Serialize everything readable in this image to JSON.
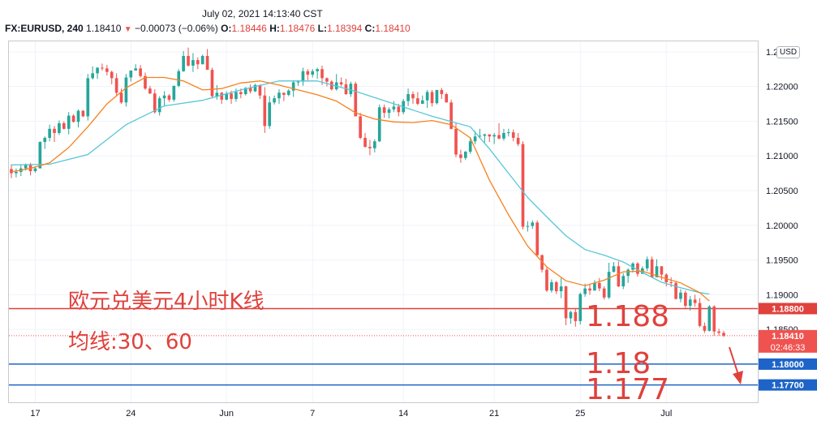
{
  "header": {
    "datetime": "July 02, 2021 14:13:40 CST",
    "symbol": "FX:EURUSD, 240",
    "last": "1.18410",
    "change": "−0.00073 (−0.06%)",
    "o_label": "O:",
    "o_value": "1.18446",
    "h_label": "H:",
    "h_value": "1.18476",
    "l_label": "L:",
    "l_value": "1.18394",
    "c_label": "C:",
    "c_value": "1.18410"
  },
  "currency_badge": "USD",
  "annotations": {
    "title_line1": "欧元兑美元4小时K线",
    "title_line2": "均线:30、60",
    "level1": "1.188",
    "level2": "1.18",
    "level3": "1.177"
  },
  "colors": {
    "up": "#26a69a",
    "down": "#ef5350",
    "ma30": "#f7811e",
    "ma60": "#57c7d6",
    "hline_red": "#e0413c",
    "hline_blue": "#1e64c8",
    "price_tag": "#ef5350",
    "annotation_text": "#e0413c"
  },
  "chart_data": {
    "type": "candlestick",
    "symbol": "FX:EURUSD",
    "interval": "240",
    "x_ticks": [
      "17",
      "24",
      "Jun",
      "7",
      "14",
      "21",
      "25",
      "Jul"
    ],
    "y_ticks": [
      "1.22500",
      "1.22000",
      "1.21500",
      "1.21000",
      "1.20500",
      "1.20000",
      "1.19500",
      "1.19000",
      "1.18500"
    ],
    "ylim": [
      1.1745,
      1.2265
    ],
    "horizontal_lines": [
      {
        "value": 1.188,
        "label": "1.18800",
        "color": "red"
      },
      {
        "value": 1.18,
        "label": "1.18000",
        "color": "blue"
      },
      {
        "value": 1.177,
        "label": "1.17700",
        "color": "blue"
      }
    ],
    "last_price": {
      "value": 1.1841,
      "label": "1.18410",
      "countdown": "02:46:33"
    },
    "ma30_anchors": [
      [
        0,
        1.2077
      ],
      [
        4,
        1.2082
      ],
      [
        8,
        1.209
      ],
      [
        12,
        1.2112
      ],
      [
        16,
        1.2142
      ],
      [
        20,
        1.2175
      ],
      [
        24,
        1.2198
      ],
      [
        28,
        1.2213
      ],
      [
        32,
        1.2213
      ],
      [
        36,
        1.2208
      ],
      [
        40,
        1.2195
      ],
      [
        44,
        1.2197
      ],
      [
        48,
        1.2205
      ],
      [
        52,
        1.2208
      ],
      [
        56,
        1.2202
      ],
      [
        60,
        1.2195
      ],
      [
        64,
        1.2188
      ],
      [
        68,
        1.2179
      ],
      [
        72,
        1.2162
      ],
      [
        76,
        1.2153
      ],
      [
        80,
        1.2149
      ],
      [
        84,
        1.2148
      ],
      [
        88,
        1.2151
      ],
      [
        92,
        1.2145
      ],
      [
        96,
        1.2126
      ],
      [
        100,
        1.2065
      ],
      [
        104,
        1.2015
      ],
      [
        108,
        1.197
      ],
      [
        112,
        1.194
      ],
      [
        116,
        1.192
      ],
      [
        120,
        1.1913
      ],
      [
        124,
        1.1921
      ],
      [
        128,
        1.1933
      ],
      [
        132,
        1.1934
      ],
      [
        136,
        1.1925
      ],
      [
        140,
        1.1917
      ],
      [
        144,
        1.1903
      ],
      [
        146,
        1.1891
      ]
    ],
    "ma60_anchors": [
      [
        0,
        1.2087
      ],
      [
        8,
        1.2088
      ],
      [
        16,
        1.2102
      ],
      [
        24,
        1.2145
      ],
      [
        32,
        1.2172
      ],
      [
        40,
        1.218
      ],
      [
        48,
        1.2195
      ],
      [
        56,
        1.2208
      ],
      [
        64,
        1.2208
      ],
      [
        72,
        1.2193
      ],
      [
        80,
        1.2175
      ],
      [
        88,
        1.2157
      ],
      [
        96,
        1.2142
      ],
      [
        100,
        1.211
      ],
      [
        104,
        1.2075
      ],
      [
        108,
        1.204
      ],
      [
        112,
        1.2012
      ],
      [
        116,
        1.1985
      ],
      [
        120,
        1.1965
      ],
      [
        124,
        1.1957
      ],
      [
        128,
        1.1947
      ],
      [
        132,
        1.1932
      ],
      [
        136,
        1.1918
      ],
      [
        140,
        1.191
      ],
      [
        144,
        1.1903
      ],
      [
        146,
        1.1901
      ]
    ],
    "candles": [
      [
        1.2081,
        1.2075,
        1.2088,
        1.2068
      ],
      [
        1.2075,
        1.2077,
        1.2082,
        1.2069
      ],
      [
        1.2077,
        1.2082,
        1.2087,
        1.2071
      ],
      [
        1.2082,
        1.2088,
        1.2089,
        1.2079
      ],
      [
        1.2088,
        1.2078,
        1.209,
        1.2072
      ],
      [
        1.2078,
        1.2082,
        1.2085,
        1.2076
      ],
      [
        1.2082,
        1.212,
        1.2121,
        1.2082
      ],
      [
        1.212,
        1.2126,
        1.2128,
        1.211
      ],
      [
        1.2126,
        1.2139,
        1.2145,
        1.2121
      ],
      [
        1.2139,
        1.2133,
        1.2143,
        1.212
      ],
      [
        1.2133,
        1.2147,
        1.2151,
        1.213
      ],
      [
        1.2147,
        1.2139,
        1.215,
        1.2138
      ],
      [
        1.2139,
        1.2158,
        1.2163,
        1.2131
      ],
      [
        1.2158,
        1.2149,
        1.216,
        1.2148
      ],
      [
        1.2149,
        1.2165,
        1.2167,
        1.2141
      ],
      [
        1.2165,
        1.2157,
        1.2166,
        1.2156
      ],
      [
        1.2157,
        1.2212,
        1.2218,
        1.2151
      ],
      [
        1.2212,
        1.2219,
        1.2229,
        1.221
      ],
      [
        1.2219,
        1.2227,
        1.2228,
        1.2211
      ],
      [
        1.2227,
        1.2226,
        1.2233,
        1.2223
      ],
      [
        1.2226,
        1.2221,
        1.2231,
        1.2216
      ],
      [
        1.2221,
        1.2212,
        1.2223,
        1.2203
      ],
      [
        1.2212,
        1.2191,
        1.2219,
        1.2187
      ],
      [
        1.2191,
        1.2177,
        1.2197,
        1.2175
      ],
      [
        1.2177,
        1.2213,
        1.2218,
        1.2171
      ],
      [
        1.2213,
        1.2223,
        1.2223,
        1.2207
      ],
      [
        1.2223,
        1.2226,
        1.2232,
        1.2224
      ],
      [
        1.2226,
        1.2215,
        1.2231,
        1.2213
      ],
      [
        1.2215,
        1.2197,
        1.222,
        1.2195
      ],
      [
        1.2197,
        1.219,
        1.2201,
        1.2189
      ],
      [
        1.219,
        1.2163,
        1.2196,
        1.2161
      ],
      [
        1.2163,
        1.2183,
        1.2186,
        1.2158
      ],
      [
        1.2183,
        1.2187,
        1.2193,
        1.2171
      ],
      [
        1.2187,
        1.2181,
        1.2189,
        1.2178
      ],
      [
        1.2181,
        1.2201,
        1.2201,
        1.2178
      ],
      [
        1.2201,
        1.2222,
        1.2225,
        1.2199
      ],
      [
        1.2222,
        1.2244,
        1.2251,
        1.2221
      ],
      [
        1.2244,
        1.223,
        1.2256,
        1.2229
      ],
      [
        1.223,
        1.2238,
        1.2248,
        1.2221
      ],
      [
        1.2238,
        1.2232,
        1.2242,
        1.2225
      ],
      [
        1.2232,
        1.2244,
        1.2246,
        1.2232
      ],
      [
        1.2244,
        1.2224,
        1.2254,
        1.2224
      ],
      [
        1.2224,
        1.2186,
        1.2227,
        1.2183
      ],
      [
        1.2186,
        1.2191,
        1.2202,
        1.2181
      ],
      [
        1.2191,
        1.2181,
        1.2192,
        1.2175
      ],
      [
        1.2181,
        1.219,
        1.2193,
        1.218
      ],
      [
        1.219,
        1.2182,
        1.2194,
        1.2175
      ],
      [
        1.2182,
        1.2192,
        1.2197,
        1.2178
      ],
      [
        1.2192,
        1.2189,
        1.2197,
        1.2183
      ],
      [
        1.2189,
        1.2198,
        1.2199,
        1.2187
      ],
      [
        1.2198,
        1.2193,
        1.2203,
        1.219
      ],
      [
        1.2193,
        1.2202,
        1.2204,
        1.2192
      ],
      [
        1.2202,
        1.2187,
        1.2203,
        1.2182
      ],
      [
        1.2187,
        1.2143,
        1.2199,
        1.2133
      ],
      [
        1.2143,
        1.2177,
        1.2186,
        1.2139
      ],
      [
        1.2177,
        1.2183,
        1.2187,
        1.2174
      ],
      [
        1.2183,
        1.2191,
        1.2196,
        1.2175
      ],
      [
        1.2191,
        1.2188,
        1.2191,
        1.2179
      ],
      [
        1.2188,
        1.2194,
        1.2196,
        1.2186
      ],
      [
        1.2194,
        1.2206,
        1.2209,
        1.2185
      ],
      [
        1.2206,
        1.2207,
        1.2209,
        1.2201
      ],
      [
        1.2207,
        1.2222,
        1.2227,
        1.2201
      ],
      [
        1.2222,
        1.2217,
        1.2225,
        1.2209
      ],
      [
        1.2217,
        1.2222,
        1.2225,
        1.2213
      ],
      [
        1.2222,
        1.2225,
        1.2227,
        1.2211
      ],
      [
        1.2225,
        1.2212,
        1.223,
        1.2202
      ],
      [
        1.2212,
        1.2207,
        1.2213,
        1.22
      ],
      [
        1.2207,
        1.2196,
        1.2209,
        1.2194
      ],
      [
        1.2196,
        1.2206,
        1.2218,
        1.2194
      ],
      [
        1.2206,
        1.2203,
        1.2213,
        1.22
      ],
      [
        1.2203,
        1.2189,
        1.2211,
        1.2188
      ],
      [
        1.2189,
        1.2204,
        1.2207,
        1.2185
      ],
      [
        1.2204,
        1.2157,
        1.2207,
        1.2157
      ],
      [
        1.2157,
        1.2126,
        1.2162,
        1.2124
      ],
      [
        1.2126,
        1.2113,
        1.2133,
        1.2112
      ],
      [
        1.2113,
        1.2111,
        1.2123,
        1.2101
      ],
      [
        1.2111,
        1.2121,
        1.2124,
        1.2105
      ],
      [
        1.2121,
        1.217,
        1.2174,
        1.212
      ],
      [
        1.217,
        1.2162,
        1.2174,
        1.2155
      ],
      [
        1.2162,
        1.2167,
        1.217,
        1.2154
      ],
      [
        1.2167,
        1.2171,
        1.2179,
        1.2163
      ],
      [
        1.2171,
        1.2163,
        1.2175,
        1.2157
      ],
      [
        1.2163,
        1.2179,
        1.2182,
        1.216
      ],
      [
        1.2179,
        1.2189,
        1.2197,
        1.2172
      ],
      [
        1.2189,
        1.2183,
        1.2193,
        1.2175
      ],
      [
        1.2183,
        1.2175,
        1.2192,
        1.2173
      ],
      [
        1.2175,
        1.218,
        1.2187,
        1.2177
      ],
      [
        1.218,
        1.2192,
        1.2195,
        1.2169
      ],
      [
        1.2192,
        1.2176,
        1.2195,
        1.2171
      ],
      [
        1.2176,
        1.2195,
        1.2195,
        1.2174
      ],
      [
        1.2195,
        1.2189,
        1.2198,
        1.2182
      ],
      [
        1.2189,
        1.2177,
        1.2191,
        1.2177
      ],
      [
        1.2177,
        1.2139,
        1.2181,
        1.2138
      ],
      [
        1.2139,
        1.2102,
        1.2147,
        1.2098
      ],
      [
        1.2102,
        1.2097,
        1.2109,
        1.209
      ],
      [
        1.2097,
        1.2106,
        1.2107,
        1.2094
      ],
      [
        1.2106,
        1.2121,
        1.2127,
        1.2103
      ],
      [
        1.2121,
        1.2128,
        1.2136,
        1.2117
      ],
      [
        1.2128,
        1.2129,
        1.2139,
        1.2125
      ],
      [
        1.2129,
        1.2131,
        1.2132,
        1.2119
      ],
      [
        1.2131,
        1.2128,
        1.2131,
        1.212
      ],
      [
        1.2128,
        1.213,
        1.2133,
        1.2117
      ],
      [
        1.213,
        1.2125,
        1.2147,
        1.2124
      ],
      [
        1.2125,
        1.2133,
        1.2139,
        1.2122
      ],
      [
        1.2133,
        1.2134,
        1.2139,
        1.2128
      ],
      [
        1.2134,
        1.2126,
        1.2138,
        1.2121
      ],
      [
        1.2126,
        1.2117,
        1.2133,
        1.2114
      ],
      [
        1.2117,
        1.1998,
        1.2121,
        1.1994
      ],
      [
        1.1998,
        1.1999,
        1.2006,
        1.1991
      ],
      [
        1.1999,
        1.2004,
        1.2007,
        1.1995
      ],
      [
        1.2004,
        1.1957,
        1.2007,
        1.1956
      ],
      [
        1.1957,
        1.1936,
        1.1958,
        1.1932
      ],
      [
        1.1936,
        1.1906,
        1.194,
        1.1904
      ],
      [
        1.1906,
        1.1918,
        1.1922,
        1.1903
      ],
      [
        1.1918,
        1.1905,
        1.192,
        1.1901
      ],
      [
        1.1905,
        1.1912,
        1.1924,
        1.1895
      ],
      [
        1.1912,
        1.1866,
        1.1913,
        1.1856
      ],
      [
        1.1866,
        1.1875,
        1.1877,
        1.1858
      ],
      [
        1.1875,
        1.1862,
        1.188,
        1.1854
      ],
      [
        1.1862,
        1.1901,
        1.1903,
        1.1857
      ],
      [
        1.1901,
        1.1909,
        1.1916,
        1.1897
      ],
      [
        1.1909,
        1.1906,
        1.1915,
        1.19
      ],
      [
        1.1906,
        1.1917,
        1.1921,
        1.1906
      ],
      [
        1.1917,
        1.1909,
        1.1924,
        1.1905
      ],
      [
        1.1909,
        1.1896,
        1.1912,
        1.1893
      ],
      [
        1.1896,
        1.1933,
        1.1946,
        1.1894
      ],
      [
        1.1933,
        1.1941,
        1.1947,
        1.1932
      ],
      [
        1.1941,
        1.1912,
        1.1948,
        1.1911
      ],
      [
        1.1912,
        1.1927,
        1.1931,
        1.1908
      ],
      [
        1.1927,
        1.1936,
        1.1938,
        1.1917
      ],
      [
        1.1936,
        1.1945,
        1.1947,
        1.1932
      ],
      [
        1.1945,
        1.193,
        1.1947,
        1.1926
      ],
      [
        1.193,
        1.1938,
        1.1941,
        1.193
      ],
      [
        1.1938,
        1.1951,
        1.1955,
        1.1934
      ],
      [
        1.1951,
        1.1925,
        1.1955,
        1.1924
      ],
      [
        1.1925,
        1.1941,
        1.1951,
        1.1935
      ],
      [
        1.1941,
        1.1929,
        1.1941,
        1.1921
      ],
      [
        1.1929,
        1.1918,
        1.1931,
        1.1912
      ],
      [
        1.1918,
        1.1917,
        1.1925,
        1.1911
      ],
      [
        1.1917,
        1.1894,
        1.192,
        1.1893
      ],
      [
        1.1894,
        1.1903,
        1.1908,
        1.1889
      ],
      [
        1.1903,
        1.1884,
        1.1906,
        1.1881
      ],
      [
        1.1884,
        1.1893,
        1.1898,
        1.1877
      ],
      [
        1.1893,
        1.1888,
        1.19,
        1.1883
      ],
      [
        1.1888,
        1.1855,
        1.1895,
        1.1853
      ],
      [
        1.1855,
        1.1848,
        1.186,
        1.1845
      ],
      [
        1.1848,
        1.1883,
        1.1885,
        1.1847
      ],
      [
        1.1883,
        1.1847,
        1.1885,
        1.1841
      ],
      [
        1.1847,
        1.1845,
        1.1851,
        1.1841
      ],
      [
        1.1845,
        1.1841,
        1.1848,
        1.1839
      ]
    ]
  },
  "y_axis_labels": [
    "1.22500",
    "1.22000",
    "1.21500",
    "1.21000",
    "1.20500",
    "1.20000",
    "1.19500",
    "1.19000",
    "1.18500"
  ],
  "x_axis_labels": [
    "17",
    "24",
    "Jun",
    "7",
    "14",
    "21",
    "25",
    "Jul"
  ]
}
